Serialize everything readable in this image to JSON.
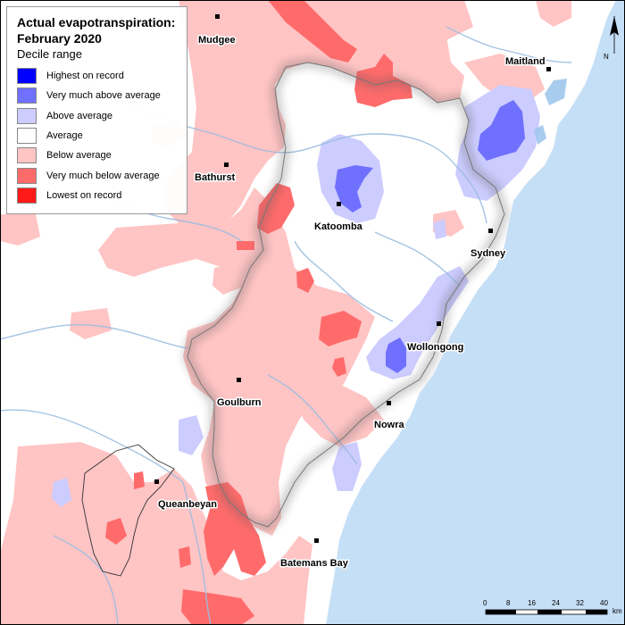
{
  "legend": {
    "title_line1": "Actual evapotranspiration:",
    "title_line2": "February 2020",
    "subtitle": "Decile range",
    "items": [
      {
        "label": "Highest on record",
        "color": "#0000ff"
      },
      {
        "label": "Very much above average",
        "color": "#7070ff"
      },
      {
        "label": "Above average",
        "color": "#ccccff"
      },
      {
        "label": "Average",
        "color": "#ffffff"
      },
      {
        "label": "Below average",
        "color": "#ffc4c4"
      },
      {
        "label": "Very much below average",
        "color": "#ff6b6b"
      },
      {
        "label": "Lowest on record",
        "color": "#ff1a1a"
      }
    ]
  },
  "towns": {
    "mudgee": "Mudgee",
    "maitland": "Maitland",
    "bathurst": "Bathurst",
    "katoomba": "Katoomba",
    "sydney": "Sydney",
    "wollongong": "Wollongong",
    "goulburn": "Goulburn",
    "nowra": "Nowra",
    "queanbeyan": "Queanbeyan",
    "batemans_bay": "Batemans Bay"
  },
  "scale": {
    "ticks": [
      "0",
      "8",
      "16",
      "24",
      "32",
      "40"
    ],
    "unit": "km"
  },
  "north_label": "N",
  "colors": {
    "ocean": "#c5dff7",
    "river": "#9bbde0"
  }
}
